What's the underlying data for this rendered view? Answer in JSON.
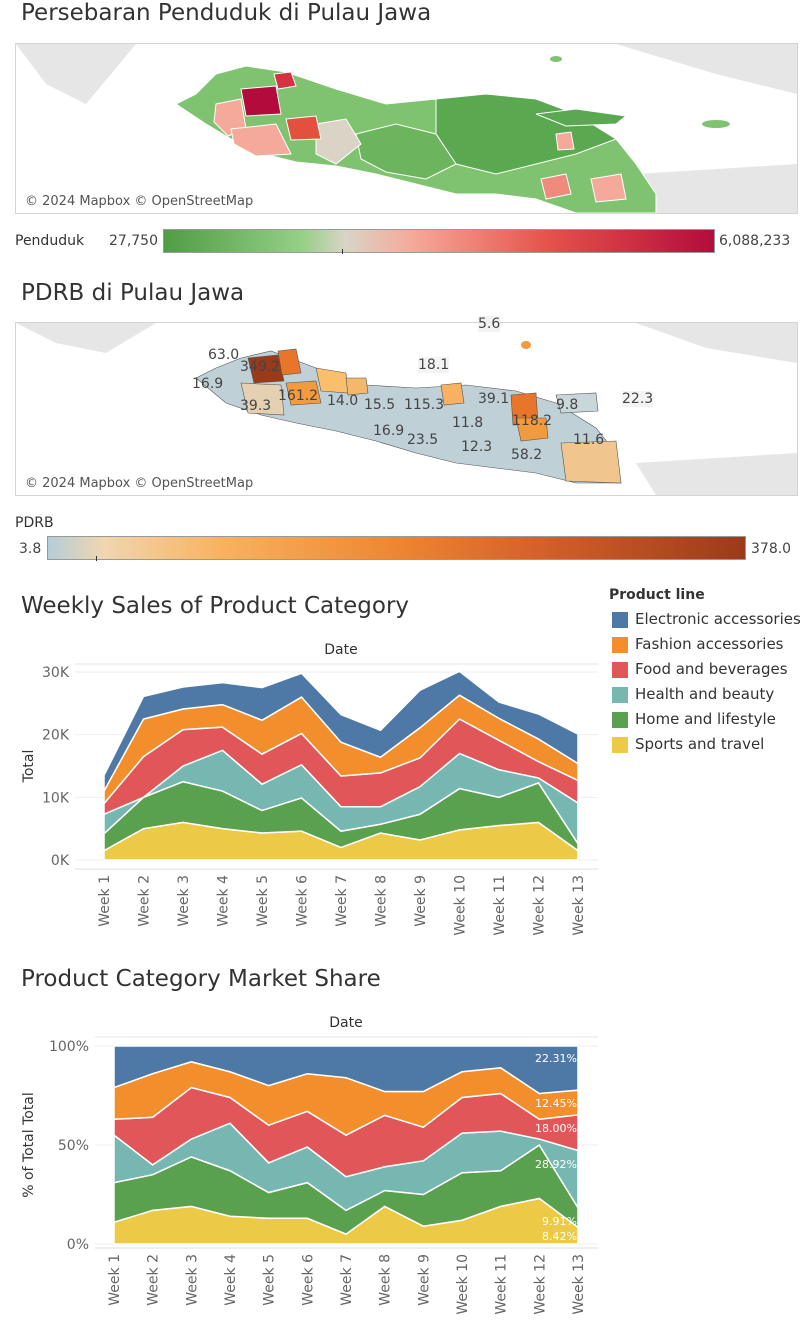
{
  "colors": {
    "electronic": "#4e79a7",
    "fashion": "#f28e2b",
    "food": "#e15759",
    "health": "#76b7b2",
    "home": "#59a14f",
    "sports": "#edc948",
    "pop_low": "#5aa84f",
    "pop_mid": "#d9d4c6",
    "pop_high": "#b30c3c",
    "pdrb_low": "#b5cdd8",
    "pdrb_mid": "#f29a3e",
    "pdrb_high": "#9b3a1a"
  },
  "map1": {
    "title": "Persebaran Penduduk di Pulau Jawa",
    "attribution": "© 2024 Mapbox © OpenStreetMap",
    "legend_label": "Penduduk",
    "legend_min": "27,750",
    "legend_max": "6,088,233"
  },
  "map2": {
    "title": "PDRB di Pulau Jawa",
    "attribution": "© 2024 Mapbox © OpenStreetMap",
    "legend_label": "PDRB",
    "legend_min": "3.8",
    "legend_max": "378.0",
    "labels": [
      "5.6",
      "63.0",
      "349.2",
      "18.1",
      "16.9",
      "161.2",
      "14.0",
      "15.5",
      "115.3",
      "39.1",
      "9.8",
      "22.3",
      "39.3",
      "16.9",
      "23.5",
      "11.8",
      "118.2",
      "12.3",
      "58.2",
      "11.6"
    ]
  },
  "legend": {
    "title": "Product line",
    "items": [
      "Electronic accessories",
      "Fashion accessories",
      "Food and beverages",
      "Health and beauty",
      "Home and lifestyle",
      "Sports and travel"
    ]
  },
  "chart1_title": "Weekly Sales of Product Category",
  "chart2_title": "Product Category Market Share",
  "chart_data": [
    {
      "type": "area",
      "stacked": true,
      "title": "Weekly Sales of Product Category",
      "header": "Date",
      "ylabel": "Total",
      "yticks": [
        "0K",
        "10K",
        "20K",
        "30K"
      ],
      "ylim": [
        0,
        30000
      ],
      "categories": [
        "Week 1",
        "Week 2",
        "Week 3",
        "Week 4",
        "Week 5",
        "Week 6",
        "Week 7",
        "Week 8",
        "Week 9",
        "Week 10",
        "Week 11",
        "Week 12",
        "Week 13"
      ],
      "series": [
        {
          "name": "Sports and travel",
          "values": [
            1500,
            5000,
            6000,
            5000,
            4300,
            4600,
            2000,
            4300,
            3200,
            4800,
            5500,
            6000,
            1500
          ]
        },
        {
          "name": "Home and lifestyle",
          "values": [
            2700,
            5000,
            6500,
            6000,
            3600,
            5300,
            2600,
            1400,
            4100,
            6600,
            4500,
            6300,
            1100
          ]
        },
        {
          "name": "Health and beauty",
          "values": [
            3100,
            0,
            2500,
            6500,
            4200,
            5300,
            3900,
            2800,
            4400,
            5600,
            4400,
            800,
            6500
          ]
        },
        {
          "name": "Food and beverages",
          "values": [
            1700,
            6500,
            5800,
            3700,
            4800,
            5000,
            4900,
            5400,
            4600,
            5500,
            4700,
            2600,
            3600
          ]
        },
        {
          "name": "Fashion accessories",
          "values": [
            2000,
            6000,
            3300,
            3600,
            5400,
            5800,
            5400,
            2500,
            4800,
            3800,
            3500,
            3600,
            2700
          ]
        },
        {
          "name": "Electronic accessories",
          "values": [
            2500,
            3600,
            3500,
            3500,
            5200,
            3800,
            4400,
            4300,
            6000,
            3800,
            2600,
            4000,
            4700
          ]
        }
      ]
    },
    {
      "type": "area",
      "stacked": true,
      "percent": true,
      "title": "Product Category Market Share",
      "header": "Date",
      "ylabel": "% of Total Total",
      "yticks": [
        "0%",
        "50%",
        "100%"
      ],
      "ylim": [
        0,
        100
      ],
      "categories": [
        "Week 1",
        "Week 2",
        "Week 3",
        "Week 4",
        "Week 5",
        "Week 6",
        "Week 7",
        "Week 8",
        "Week 9",
        "Week 10",
        "Week 11",
        "Week 12",
        "Week 13"
      ],
      "series": [
        {
          "name": "Sports and travel",
          "values": [
            11,
            17,
            19,
            14,
            13,
            13,
            5,
            19,
            9,
            12,
            19,
            23,
            8.42
          ]
        },
        {
          "name": "Home and lifestyle",
          "values": [
            20,
            18,
            25,
            23,
            13,
            18,
            12,
            8,
            16,
            24,
            18,
            27,
            9.91
          ]
        },
        {
          "name": "Health and beauty",
          "values": [
            24,
            5,
            9,
            24,
            15,
            18,
            17,
            12,
            17,
            20,
            20,
            3,
            28.92
          ]
        },
        {
          "name": "Food and beverages",
          "values": [
            8,
            24,
            26,
            13,
            19,
            18,
            21,
            26,
            17,
            18,
            19,
            10,
            18.0
          ]
        },
        {
          "name": "Fashion accessories",
          "values": [
            16,
            22,
            13,
            13,
            20,
            19,
            29,
            12,
            18,
            13,
            13,
            13,
            12.45
          ]
        },
        {
          "name": "Electronic accessories",
          "values": [
            21,
            14,
            8,
            13,
            20,
            14,
            16,
            23,
            23,
            13,
            11,
            24,
            22.31
          ]
        }
      ],
      "end_labels": [
        "22.31%",
        "12.45%",
        "18.00%",
        "28.92%",
        "9.91%",
        "8.42%"
      ]
    }
  ]
}
